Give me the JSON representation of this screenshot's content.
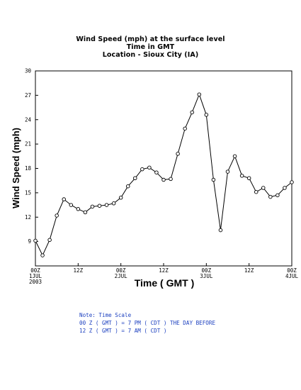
{
  "chart_data": {
    "type": "line",
    "title": [
      "Wind Speed (mph) at the surface level",
      "Time in GMT",
      "Location - Sioux City (IA)"
    ],
    "xlabel": "Time ( GMT )",
    "ylabel": "Wind Speed (mph)",
    "ylim": [
      6,
      30
    ],
    "yticks": [
      9,
      12,
      15,
      18,
      21,
      24,
      27,
      30
    ],
    "ytick_labels": [
      "9",
      "12",
      "15",
      "18",
      "21",
      "24",
      "27",
      "30"
    ],
    "xlim": [
      0,
      72
    ],
    "xticks": [
      {
        "x": 0,
        "label": "00Z",
        "label2": "1JUL",
        "label3": "2003"
      },
      {
        "x": 12,
        "label": "12Z"
      },
      {
        "x": 24,
        "label": "00Z",
        "label2": "2JUL"
      },
      {
        "x": 36,
        "label": "12Z"
      },
      {
        "x": 48,
        "label": "00Z",
        "label2": "3JUL"
      },
      {
        "x": 60,
        "label": "12Z"
      },
      {
        "x": 72,
        "label": "00Z",
        "label2": "4JUL"
      }
    ],
    "grid": false,
    "marker": "open-circle",
    "color": "#000000",
    "x": [
      0,
      2,
      4,
      6,
      8,
      10,
      12,
      14,
      16,
      18,
      20,
      22,
      24,
      26,
      28,
      30,
      32,
      34,
      36,
      38,
      40,
      42,
      44,
      46,
      48,
      50,
      52,
      54,
      56,
      58,
      60,
      62,
      64,
      66,
      68,
      70,
      72
    ],
    "values": [
      9.1,
      7.3,
      9.2,
      12.2,
      14.2,
      13.5,
      13.0,
      12.6,
      13.3,
      13.4,
      13.5,
      13.7,
      14.4,
      15.8,
      16.8,
      17.9,
      18.1,
      17.5,
      16.6,
      16.7,
      19.8,
      22.9,
      24.9,
      27.1,
      24.6,
      16.6,
      10.4,
      17.6,
      19.5,
      17.1,
      16.8,
      15.1,
      15.6,
      14.5,
      14.7,
      15.6,
      16.3
    ]
  },
  "notes": [
    "Note: Time Scale",
    "00 Z ( GMT ) = 7 PM ( CDT ) THE DAY BEFORE",
    "12 Z ( GMT ) = 7 AM ( CDT )"
  ]
}
